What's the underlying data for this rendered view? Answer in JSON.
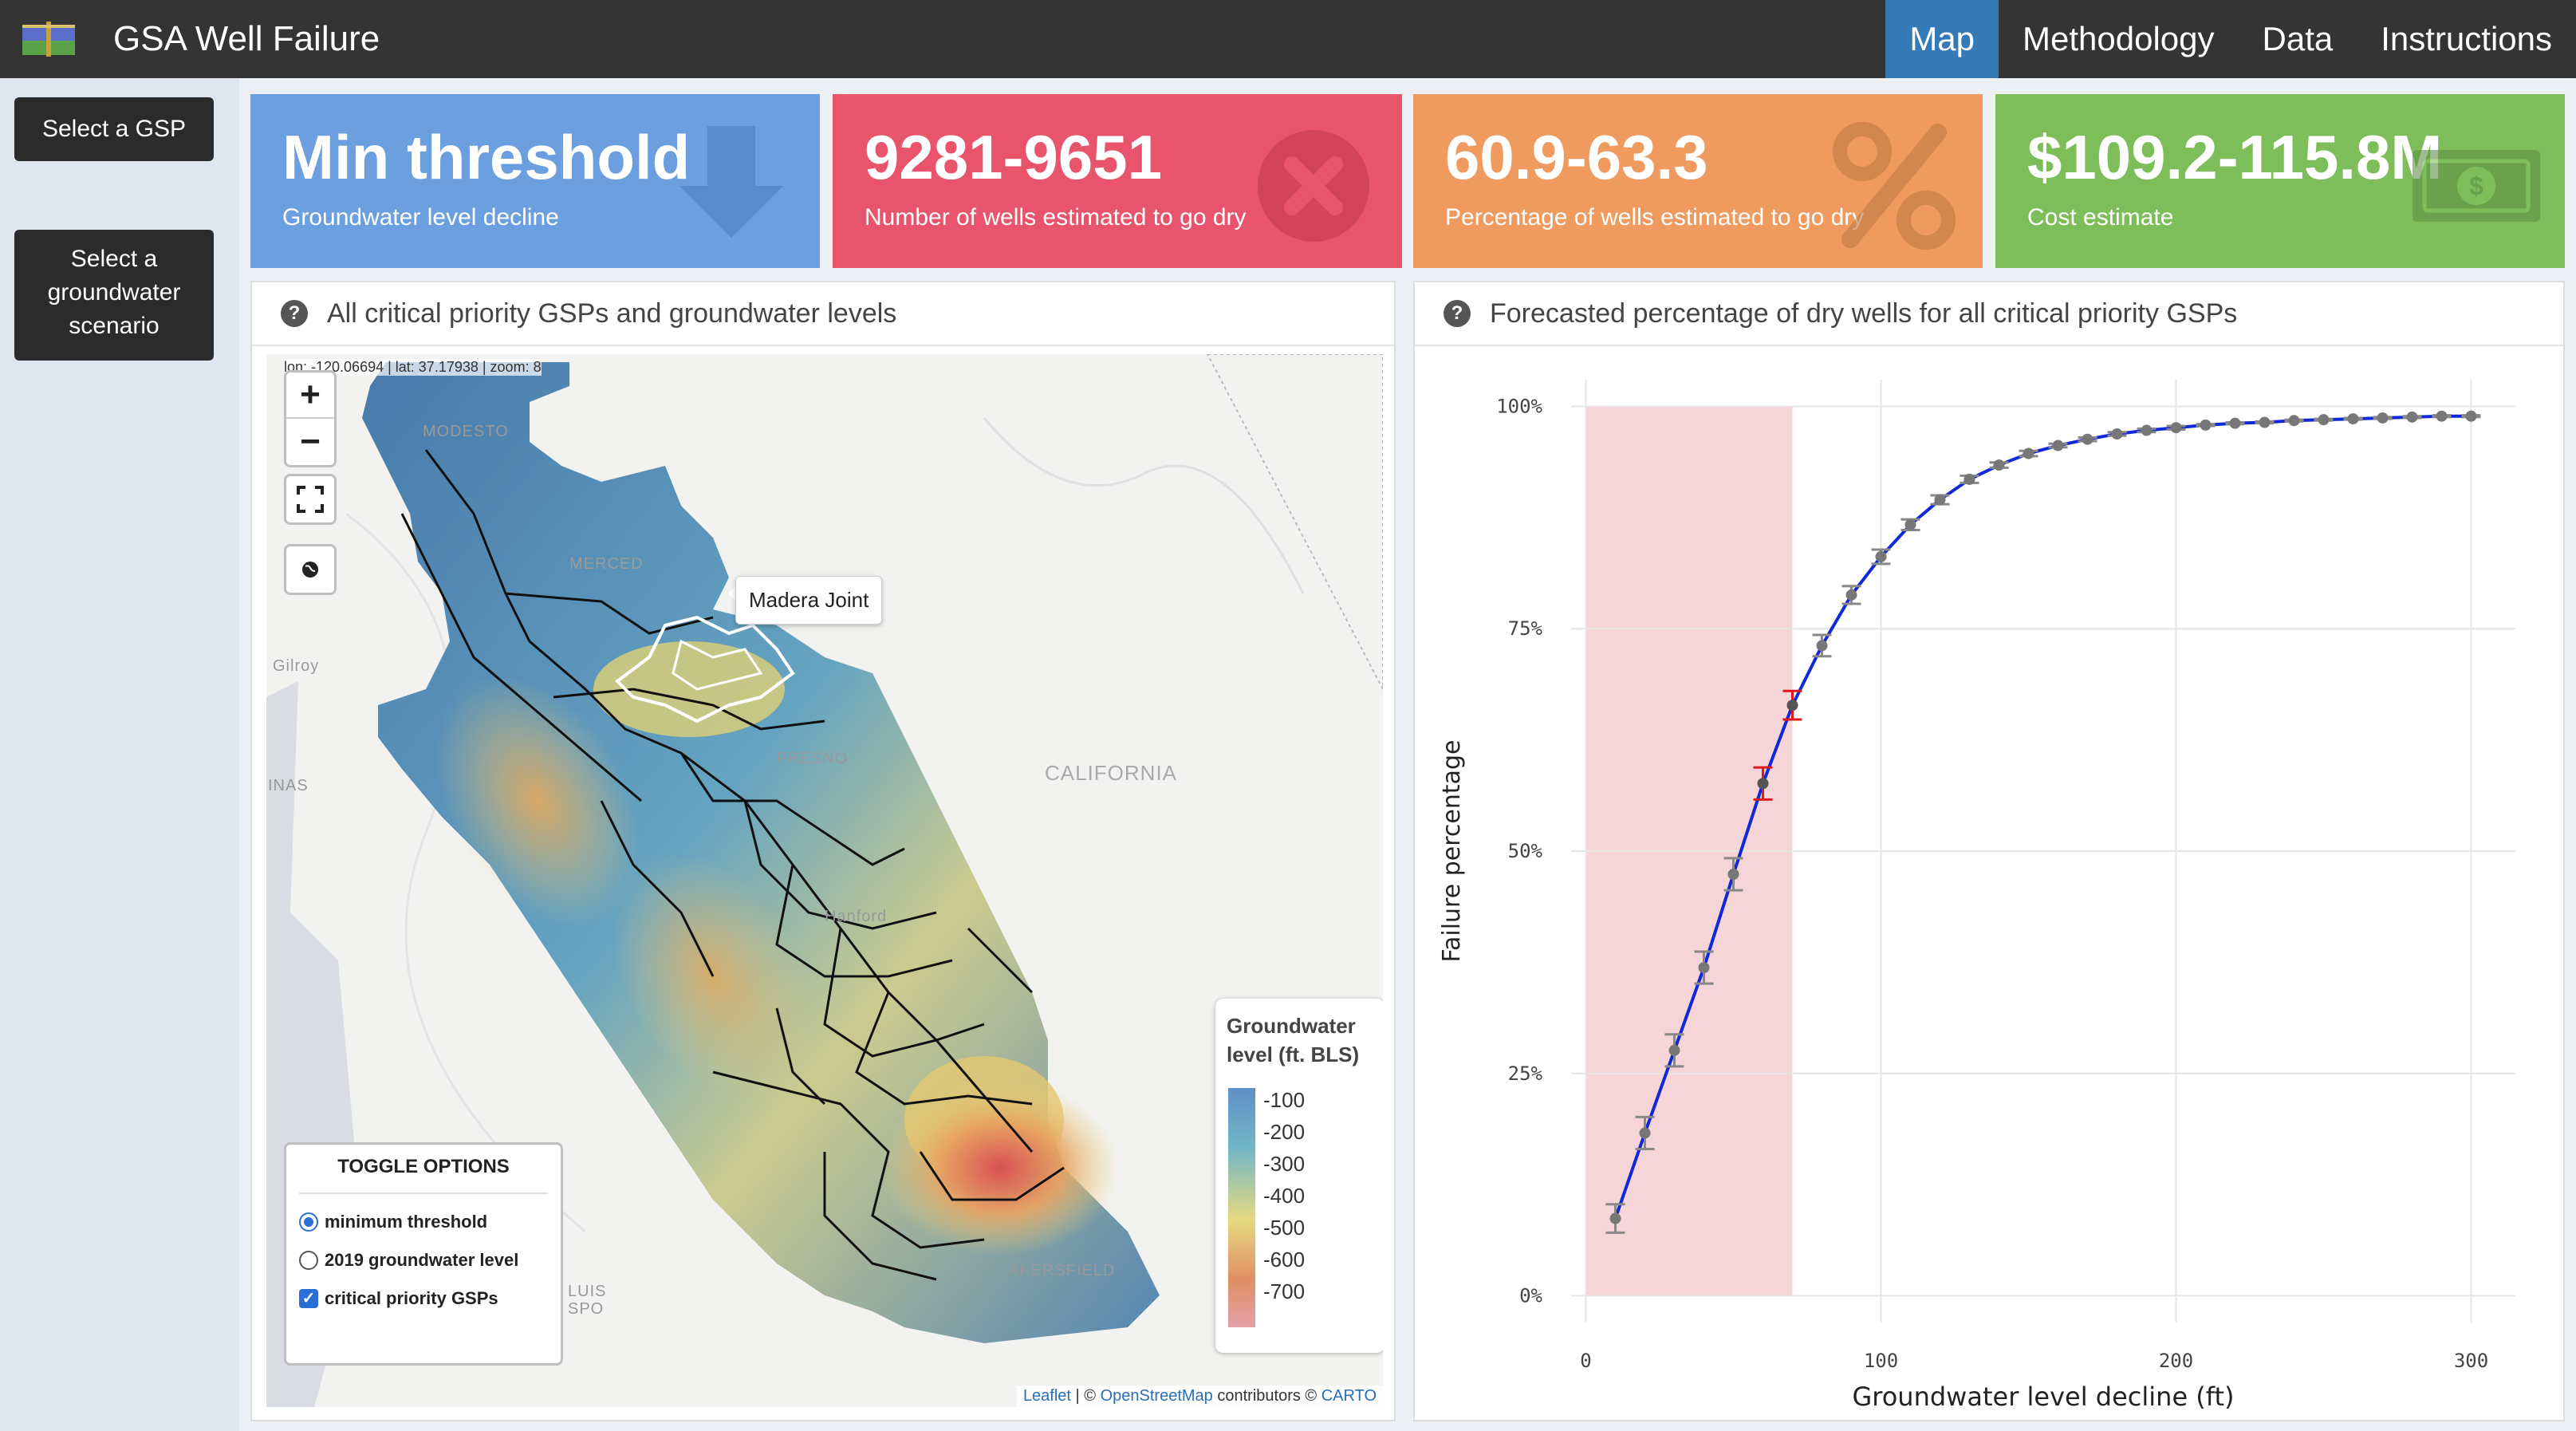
{
  "app": {
    "title": "GSA Well Failure",
    "logo_icon": "map-book-icon"
  },
  "nav": {
    "tabs": [
      {
        "label": "Map",
        "active": true
      },
      {
        "label": "Methodology",
        "active": false
      },
      {
        "label": "Data",
        "active": false
      },
      {
        "label": "Instructions",
        "active": false
      }
    ]
  },
  "sidebar": {
    "select_gsp": "Select a GSP",
    "select_scenario": "Select a groundwater scenario"
  },
  "value_boxes": [
    {
      "value": "Min threshold",
      "caption": "Groundwater level decline",
      "icon": "arrow-down-icon",
      "color": "#6b9fe0"
    },
    {
      "value": "9281-9651",
      "caption": "Number of wells estimated to go dry",
      "icon": "times-circle-icon",
      "color": "#e8546c"
    },
    {
      "value": "60.9-63.3",
      "caption": "Percentage of wells estimated to go dry",
      "icon": "percent-icon",
      "color": "#ef9b5f"
    },
    {
      "value": "$109.2-115.8M",
      "caption": "Cost estimate",
      "icon": "money-bill-icon",
      "color": "#7dbe5a"
    }
  ],
  "map_panel": {
    "title": "All critical priority GSPs and groundwater levels",
    "coords": "lon: -120.06694 | lat: 37.17938 | zoom: 8",
    "tooltip": "Madera Joint",
    "places": [
      "MODESTO",
      "MERCED",
      "Gilroy",
      "FRESNO",
      "CALIFORNIA",
      "INAS",
      "Hanford",
      "LUIS",
      "SPO",
      "AKERSFIELD"
    ],
    "legend": {
      "title": "Groundwater level (ft. BLS)",
      "ticks": [
        "-100",
        "-200",
        "-300",
        "-400",
        "-500",
        "-600",
        "-700"
      ]
    },
    "toggle": {
      "title": "TOGGLE OPTIONS",
      "options": [
        "minimum threshold",
        "2019 groundwater level",
        "critical priority GSPs"
      ],
      "selected": "minimum threshold",
      "checked": true
    },
    "attribution": {
      "leaflet": "Leaflet",
      "sep": " | © ",
      "osm": "OpenStreetMap",
      "mid": " contributors © ",
      "carto": "CARTO"
    }
  },
  "chart_panel": {
    "title": "Forecasted percentage of dry wells for all critical priority GSPs"
  },
  "chart_data": {
    "type": "line",
    "xlabel": "Groundwater level decline (ft)",
    "ylabel": "Failure percentage",
    "xlim": [
      -5,
      315
    ],
    "ylim": [
      -3,
      103
    ],
    "xticks": [
      0,
      100,
      200,
      300
    ],
    "xtick_labels": [
      "0",
      "100",
      "200",
      "300"
    ],
    "yticks": [
      0,
      25,
      50,
      75,
      100
    ],
    "ytick_labels": [
      "0%",
      "25%",
      "50%",
      "75%",
      "100%"
    ],
    "shaded_region": {
      "x0": 0,
      "x1": 70,
      "color": "#f6d5d9"
    },
    "line_color": "#1028d8",
    "series": [
      {
        "x": [
          10,
          20,
          30,
          40,
          50,
          60,
          70,
          80,
          90,
          100,
          110,
          120,
          130,
          140,
          150,
          160,
          170,
          180,
          190,
          200,
          210,
          220,
          230,
          240,
          250,
          260,
          270,
          280,
          290,
          300
        ],
        "y": [
          8.7,
          18.3,
          27.6,
          36.9,
          47.4,
          57.6,
          66.4,
          73.1,
          78.8,
          83.1,
          86.7,
          89.5,
          91.8,
          93.4,
          94.7,
          95.6,
          96.3,
          96.9,
          97.3,
          97.6,
          97.9,
          98.1,
          98.2,
          98.4,
          98.5,
          98.6,
          98.7,
          98.8,
          98.9,
          98.9
        ],
        "err": [
          1.6,
          1.8,
          1.8,
          1.8,
          1.8,
          1.8,
          1.6,
          1.2,
          1.0,
          0.8,
          0.6,
          0.5,
          0.4,
          0.3,
          0.3,
          0.2,
          0.2,
          0.2,
          0.2,
          0.2,
          0.1,
          0.1,
          0.1,
          0.1,
          0.1,
          0.1,
          0.1,
          0.1,
          0.1,
          0.1
        ],
        "highlight": [
          60,
          70
        ]
      }
    ]
  }
}
